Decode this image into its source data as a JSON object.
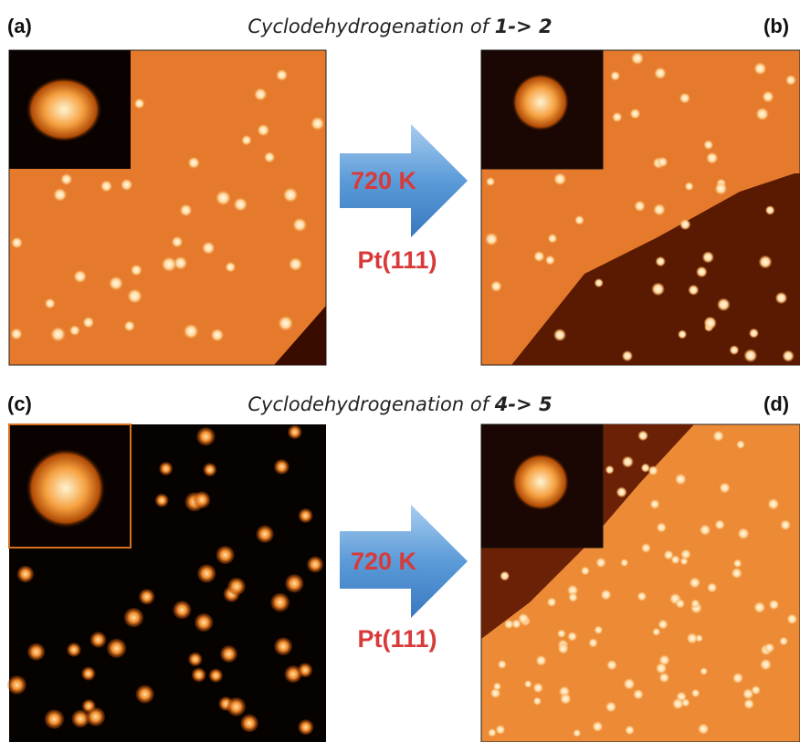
{
  "panels": [
    {
      "label": "(a)"
    },
    {
      "label": "(b)"
    },
    {
      "label": "(c)"
    },
    {
      "label": "(d)"
    }
  ],
  "rows": [
    {
      "title": {
        "text": "Cyclodehydrogenation of ",
        "emphasis": "1-> 2"
      },
      "arrow": {
        "label": "720 K",
        "substrate": "Pt(111)"
      }
    },
    {
      "title": {
        "text": "Cyclodehydrogenation of ",
        "emphasis": "4-> 5"
      },
      "arrow": {
        "label": "720 K",
        "substrate": "Pt(111)"
      }
    }
  ]
}
